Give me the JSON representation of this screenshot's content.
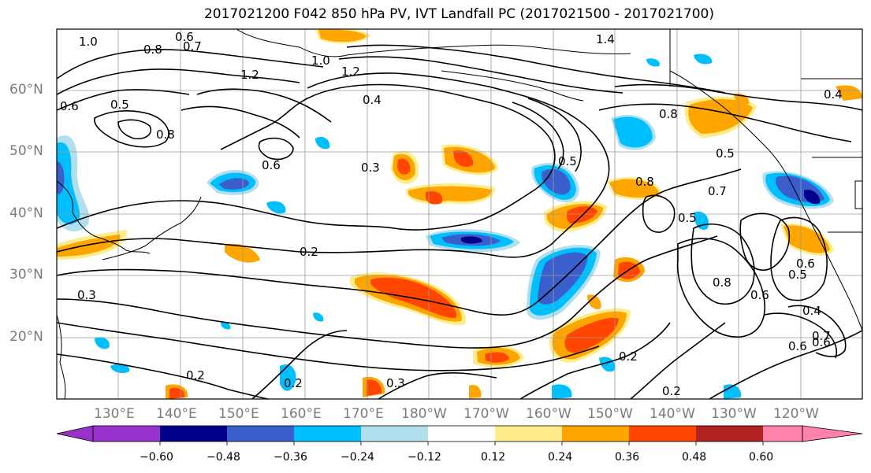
{
  "title": "2017021200 F042 850 hPa PV, IVT Landfall PC (2017021500 - 2017021700)",
  "lat_labels": [
    "60°N",
    "50°N",
    "40°N",
    "30°N",
    "20°N"
  ],
  "lon_labels": [
    "130°E",
    "140°E",
    "150°E",
    "160°E",
    "170°E",
    "180°W",
    "170°W",
    "160°W",
    "150°W",
    "140°W",
    "130°W",
    "120°W"
  ],
  "contour_labels": [
    "1.0",
    "0.6",
    "0.7",
    "0.8",
    "1.2",
    "1.2",
    "1.0",
    "0.4",
    "0.6",
    "0.5",
    "0.8",
    "0.6",
    "0.3",
    "0.2",
    "0.3",
    "0.2",
    "0.3",
    "0.2",
    "0.2",
    "0.5",
    "0.8",
    "0.7",
    "0.5",
    "0.6",
    "0.8",
    "0.6",
    "0.5",
    "0.4",
    "0.6",
    "0.2",
    "1.4",
    "0.4",
    "0.8",
    "0.5",
    "0.6",
    "0.7"
  ],
  "colorbar": {
    "ticks": [
      "−0.60",
      "−0.48",
      "−0.36",
      "−0.24",
      "−0.12",
      "0.12",
      "0.24",
      "0.36",
      "0.48",
      "0.60"
    ],
    "colors": [
      "#9932cc",
      "#00008b",
      "#3a5fcd",
      "#00bfff",
      "#b2dfee",
      "#ffffff",
      "#ffec8b",
      "#ffa500",
      "#ff4500",
      "#b22222",
      "#ff82ab"
    ]
  }
}
